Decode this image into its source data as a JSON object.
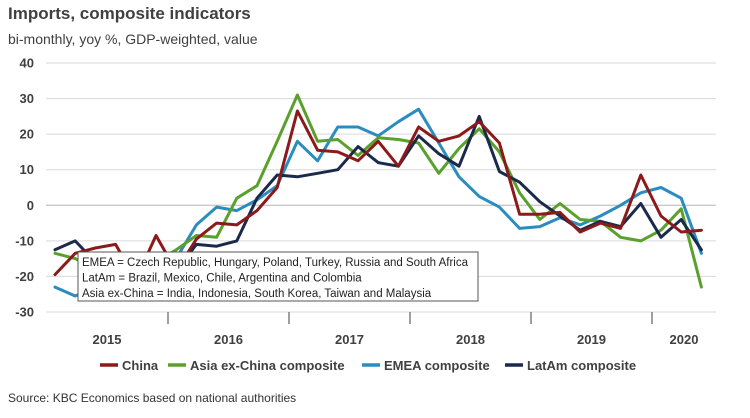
{
  "title": "Imports, composite indicators",
  "subtitle": "bi-monthly, yoy %, GDP-weighted, value",
  "source": "Source: KBC Economics based on national authorities",
  "chart_data": {
    "type": "line",
    "ylim": [
      -30,
      40
    ],
    "yticks": [
      40,
      30,
      20,
      10,
      0,
      -10,
      -20,
      -30
    ],
    "year_labels": [
      "2015",
      "2016",
      "2017",
      "2018",
      "2019",
      "2020"
    ],
    "grid": true,
    "legend_position": "bottom",
    "note_lines": [
      "EMEA = Czech Republic, Hungary, Poland, Turkey, Russia and South Africa",
      "LatAm = Brazil, Mexico, Chile, Argentina and Colombia",
      "Asia ex-China = India, Indonesia, South Korea, Taiwan and Malaysia"
    ],
    "series": [
      {
        "name": "China",
        "color": "#8b1a1a",
        "values": [
          -19.5,
          -13.5,
          -12,
          -11,
          -21,
          -8.5,
          -18.5,
          -9.5,
          -5,
          -5.5,
          -1.5,
          5,
          26.5,
          15.5,
          15,
          12.5,
          18,
          11,
          22,
          18,
          19.5,
          23.5,
          17.5,
          -2.5,
          -2.5,
          -2,
          -7.5,
          -5,
          -6.5,
          8.5,
          -3,
          -7.5,
          -7
        ]
      },
      {
        "name": "Asia ex-China composite",
        "color": "#5aa02c",
        "values": [
          -13.5,
          -15,
          -18,
          -19,
          -18,
          -16,
          -12.5,
          -8.5,
          -9,
          2,
          5.5,
          18,
          31,
          18,
          18.5,
          14,
          19,
          18.5,
          17.5,
          9,
          16,
          21.5,
          15,
          3.5,
          -4,
          0.5,
          -4,
          -4.5,
          -9,
          -10,
          -7,
          -1,
          -23
        ]
      },
      {
        "name": "EMEA composite",
        "color": "#2b8cbe",
        "values": [
          -23,
          -25.5,
          -23,
          -22.5,
          -19,
          -18.5,
          -15,
          -5.5,
          -0.5,
          -1.5,
          1.5,
          5.5,
          18,
          12.5,
          22,
          22,
          19.5,
          23.5,
          27,
          17.5,
          8,
          2.5,
          -0.5,
          -6.5,
          -6,
          -3.5,
          -5.5,
          -3,
          0,
          3.5,
          5,
          2,
          -13.5
        ]
      },
      {
        "name": "LatAm composite",
        "color": "#1b2a4a",
        "values": [
          -12.5,
          -10,
          -16,
          -20,
          -21.5,
          -19.5,
          -18.5,
          -11,
          -11.5,
          -10,
          2,
          8.5,
          8,
          9,
          10,
          16.5,
          12,
          11,
          19.5,
          14.5,
          11,
          25,
          9.5,
          6.5,
          1,
          -3,
          -7,
          -4.5,
          -6,
          0.5,
          -9,
          -4,
          -12.5
        ]
      }
    ]
  }
}
